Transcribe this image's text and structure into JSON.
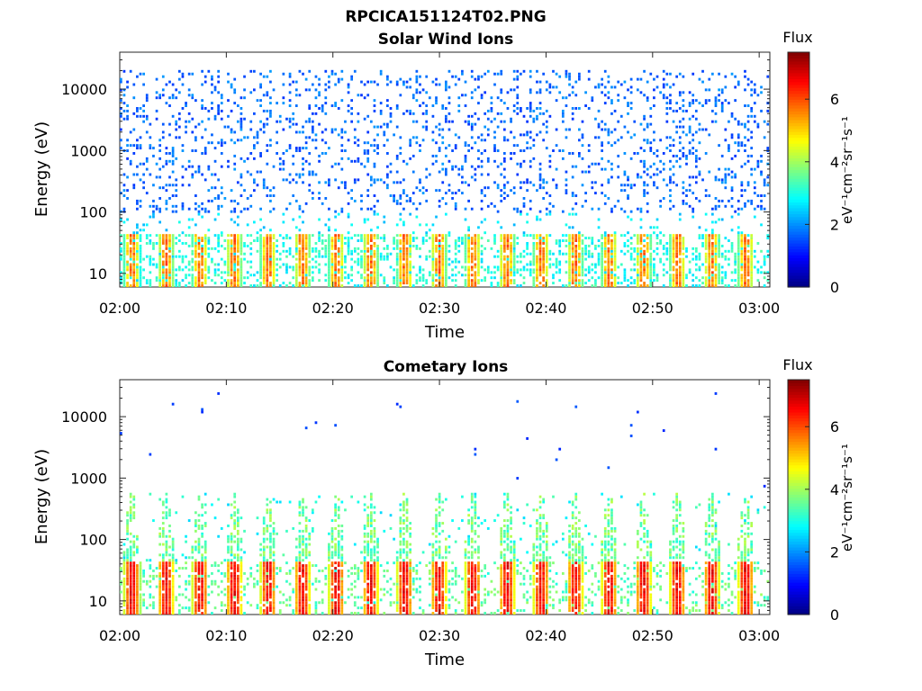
{
  "figure": {
    "filename": "RPCICA151124T02.PNG"
  },
  "colormap": {
    "name": "jet",
    "stops": [
      "#00007f",
      "#0000ff",
      "#007fff",
      "#00ffff",
      "#7fff7f",
      "#ffff00",
      "#ff7f00",
      "#ff0000",
      "#7f0000"
    ]
  },
  "chart_data": [
    {
      "type": "heatmap",
      "title": "Solar Wind Ions",
      "xlabel": "Time",
      "ylabel": "Energy (eV)",
      "y_scale": "log",
      "ylim": [
        6,
        40000
      ],
      "y_ticks": [
        10,
        100,
        1000,
        10000
      ],
      "y_tick_labels": [
        "10",
        "100",
        "1000",
        "10000"
      ],
      "xlim": [
        "02:00",
        "03:01"
      ],
      "x_ticks": [
        "02:00",
        "02:10",
        "02:20",
        "02:30",
        "02:40",
        "02:50",
        "03:00"
      ],
      "colorbar": {
        "label": "Flux",
        "units": "eV⁻¹cm⁻²sr⁻¹s⁻¹",
        "ticks": [
          "0",
          "2",
          "4",
          "6"
        ],
        "range": [
          0,
          7.5
        ]
      },
      "pattern": {
        "description": "periodic bands",
        "band_energy_eV": [
          10,
          45
        ],
        "band_peak_flux": 6.2,
        "band_period_min": 3.2,
        "scatter_energy_eV": [
          100,
          20000
        ],
        "scatter_flux": 1.3
      }
    },
    {
      "type": "heatmap",
      "title": "Cometary Ions",
      "xlabel": "Time",
      "ylabel": "Energy (eV)",
      "y_scale": "log",
      "ylim": [
        6,
        40000
      ],
      "y_ticks": [
        10,
        100,
        1000,
        10000
      ],
      "y_tick_labels": [
        "10",
        "100",
        "1000",
        "10000"
      ],
      "xlim": [
        "02:00",
        "03:01"
      ],
      "x_ticks": [
        "02:00",
        "02:10",
        "02:20",
        "02:30",
        "02:40",
        "02:50",
        "03:00"
      ],
      "colorbar": {
        "label": "Flux",
        "units": "eV⁻¹cm⁻²sr⁻¹s⁻¹",
        "ticks": [
          "0",
          "2",
          "4",
          "6"
        ],
        "range": [
          0,
          7.5
        ]
      },
      "pattern": {
        "description": "periodic bands",
        "band_energy_eV": [
          6,
          45
        ],
        "band_peak_flux": 7.0,
        "band_period_min": 3.2,
        "spike_energy_eV": [
          60,
          600
        ],
        "spike_flux": 3.0
      }
    }
  ]
}
